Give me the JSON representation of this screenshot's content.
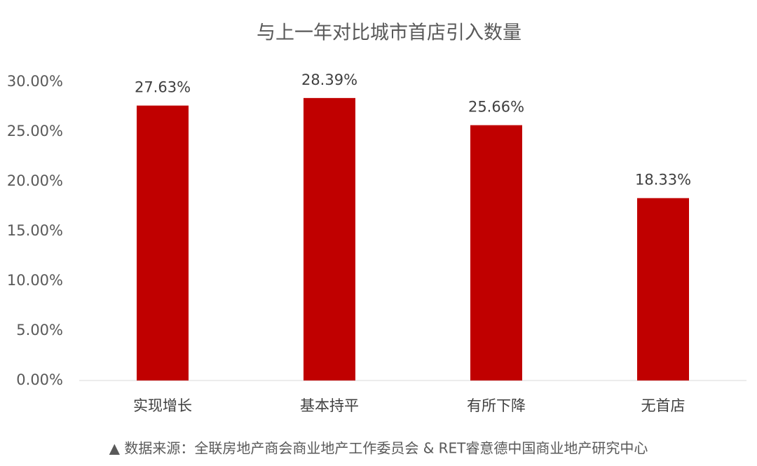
{
  "chart_data": {
    "type": "bar",
    "title": "与上一年对比城市首店引入数量",
    "categories": [
      "实现增长",
      "基本持平",
      "有所下降",
      "无首店"
    ],
    "values": [
      27.63,
      28.39,
      25.66,
      18.33
    ],
    "value_labels": [
      "27.63%",
      "28.39%",
      "25.66%",
      "18.33%"
    ],
    "color": "#c00000",
    "ylim": [
      0,
      30
    ],
    "yticks": [
      {
        "value": 0,
        "label": "0.00%"
      },
      {
        "value": 5,
        "label": "5.00%"
      },
      {
        "value": 10,
        "label": "10.00%"
      },
      {
        "value": 15,
        "label": "15.00%"
      },
      {
        "value": 20,
        "label": "20.00%"
      },
      {
        "value": 25,
        "label": "25.00%"
      },
      {
        "value": 30,
        "label": "30.00%"
      }
    ],
    "grid": false,
    "source": "▲ 数据来源：全联房地产商会商业地产工作委员会 & RET睿意德中国商业地产研究中心"
  }
}
